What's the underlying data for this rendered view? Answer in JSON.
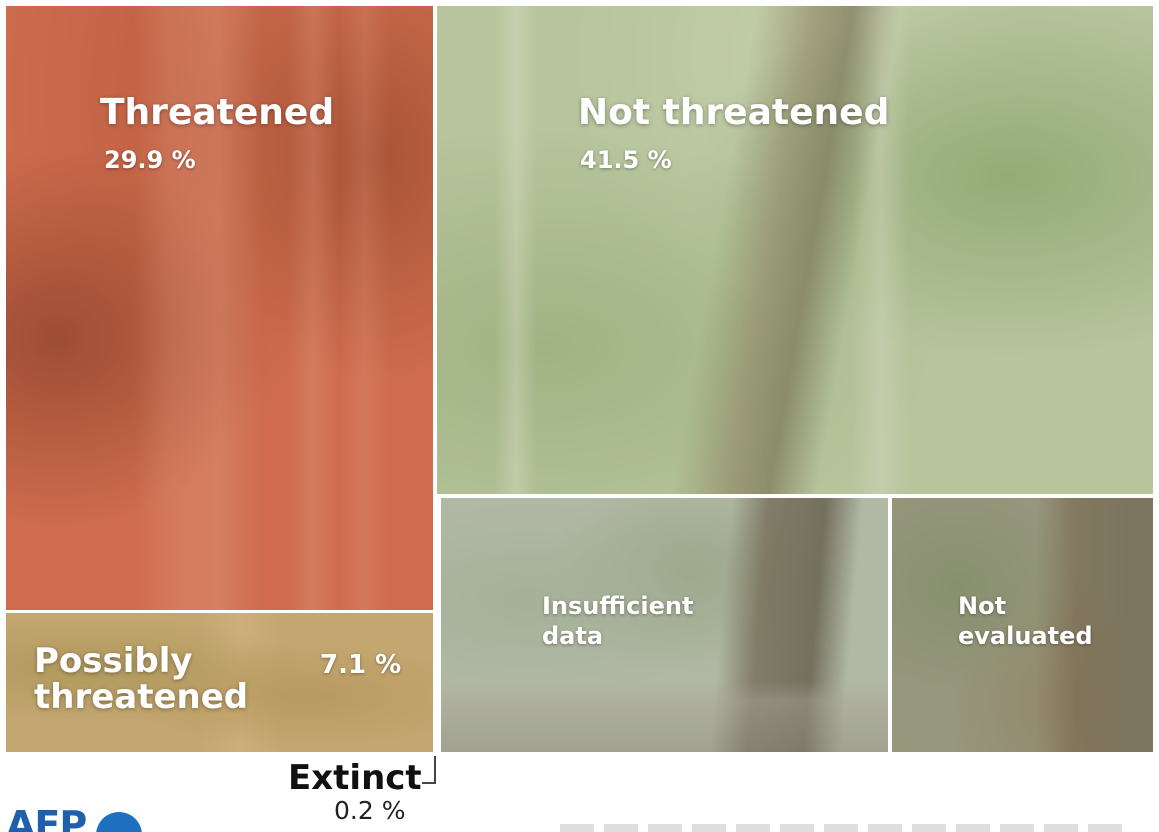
{
  "chart_data": {
    "type": "treemap",
    "title": "",
    "categories": [
      "Threatened",
      "Not threatened",
      "Possibly threatened",
      "Insufficient data",
      "Not evaluated",
      "Extinct"
    ],
    "values": [
      29.9,
      41.5,
      7.1,
      null,
      null,
      0.2
    ],
    "unit": "%",
    "colors": {
      "threatened": "#c96a4b",
      "possibly_threatened": "#b9a271",
      "not_threatened": "#a8b98b",
      "insufficient_data": "#aab39c",
      "not_evaluated": "#8f9378"
    }
  },
  "labels": {
    "threatened": {
      "name": "Threatened",
      "pct": "29.9 %"
    },
    "not_threatened": {
      "name": "Not threatened",
      "pct": "41.5 %"
    },
    "possibly_threatened": {
      "line1": "Possibly",
      "line2": "threatened",
      "pct": "7.1 %"
    },
    "insufficient_data": {
      "line1": "Insufficient",
      "line2": "data"
    },
    "not_evaluated": {
      "line1": "Not",
      "line2": "evaluated"
    },
    "extinct": {
      "name": "Extinct",
      "pct": "0.2 %"
    }
  },
  "logo": {
    "text": "AFP"
  }
}
